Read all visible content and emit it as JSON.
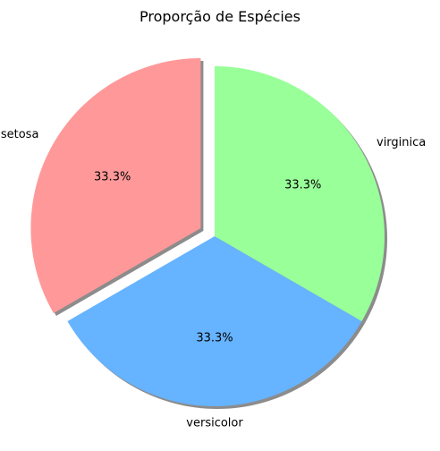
{
  "chart_data": {
    "type": "pie",
    "title": "Proporção de Espécies",
    "start_angle_deg": 90,
    "shadow": true,
    "slices": [
      {
        "label": "setosa",
        "value": 33.3,
        "percent_label": "33.3%",
        "color": "#ff9999",
        "exploded": true
      },
      {
        "label": "versicolor",
        "value": 33.3,
        "percent_label": "33.3%",
        "color": "#66b3ff",
        "exploded": false
      },
      {
        "label": "virginica",
        "value": 33.3,
        "percent_label": "33.3%",
        "color": "#99ff99",
        "exploded": false
      }
    ]
  }
}
